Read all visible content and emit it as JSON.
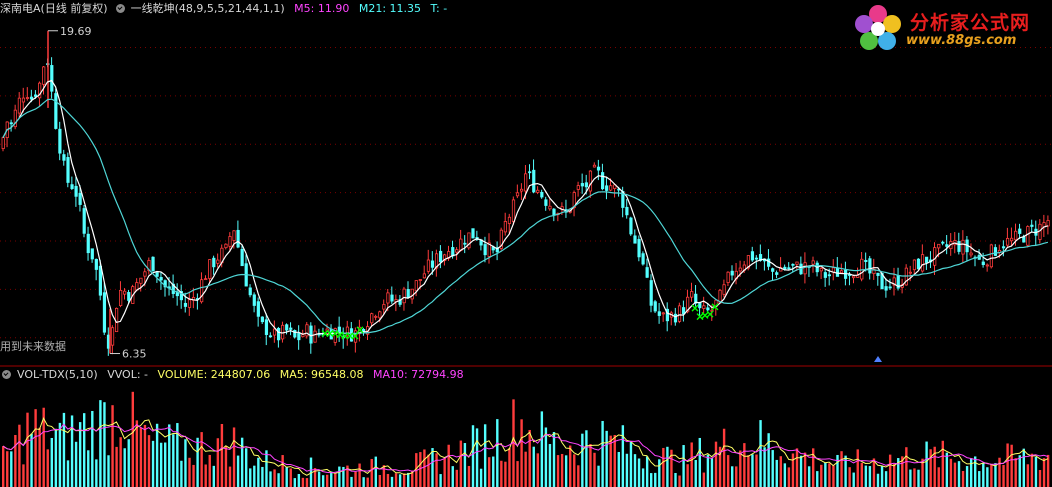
{
  "price_header": {
    "stock_name": "深南电A(日线 前复权)",
    "indicator_name": "一线乾坤(48,9,5,5,21,44,1,1)",
    "m5_label": "M5: 11.90",
    "m21_label": "M21: 11.35",
    "t_label": "T: -"
  },
  "volume_header": {
    "indicator_name": "VOL-TDX(5,10)",
    "vvol_label": "VVOL: -",
    "volume_label": "VOLUME: 244807.06",
    "ma5_label": "MA5: 96548.08",
    "ma10_label": "MA10: 72794.98"
  },
  "future_note": "用到未来数据",
  "logo": {
    "title": "分析家公式网",
    "url": "www.88gs.com"
  },
  "colors": {
    "up": "#ff3c3c",
    "down": "#54ffff",
    "ma_fast": "#ffffff",
    "ma_slow": "#4fd6d6",
    "signal": "#00ff00",
    "vol_ma5": "#ffff66",
    "vol_ma10": "#ff44ff",
    "m5": "#ff44ff",
    "m21": "#54ffff",
    "grid": "#7a0000"
  },
  "chart_data": [
    {
      "type": "candlestick",
      "title": "深南电A(日线 前复权)",
      "ylim": [
        6.0,
        20.3
      ],
      "high_marker": {
        "label": "19.69",
        "value": 19.69
      },
      "low_marker": {
        "label": "6.35",
        "value": 6.35
      },
      "close_keyframes": [
        [
          0,
          14.8
        ],
        [
          5,
          16.0
        ],
        [
          10,
          15.8
        ],
        [
          15,
          16.4
        ],
        [
          20,
          17.0
        ],
        [
          25,
          17.3
        ],
        [
          30,
          16.9
        ],
        [
          40,
          17.6
        ],
        [
          45,
          19.0
        ],
        [
          50,
          17.3
        ],
        [
          55,
          15.8
        ],
        [
          65,
          13.5
        ],
        [
          70,
          13.4
        ],
        [
          75,
          13.0
        ],
        [
          80,
          12.0
        ],
        [
          85,
          10.8
        ],
        [
          90,
          10.6
        ],
        [
          95,
          9.8
        ],
        [
          100,
          8.6
        ],
        [
          105,
          6.9
        ],
        [
          110,
          6.9
        ],
        [
          115,
          8.4
        ],
        [
          120,
          9.0
        ],
        [
          130,
          8.8
        ],
        [
          140,
          9.5
        ],
        [
          150,
          10.2
        ],
        [
          158,
          9.6
        ],
        [
          165,
          9.0
        ],
        [
          175,
          8.8
        ],
        [
          185,
          8.3
        ],
        [
          195,
          8.8
        ],
        [
          205,
          9.7
        ],
        [
          215,
          10.3
        ],
        [
          225,
          10.6
        ],
        [
          232,
          11.7
        ],
        [
          240,
          10.2
        ],
        [
          250,
          8.6
        ],
        [
          258,
          7.5
        ],
        [
          265,
          7.4
        ],
        [
          275,
          7.0
        ],
        [
          285,
          7.3
        ],
        [
          295,
          6.9
        ],
        [
          305,
          7.3
        ],
        [
          312,
          7.0
        ],
        [
          322,
          7.3
        ],
        [
          335,
          7.3
        ],
        [
          345,
          7.2
        ],
        [
          355,
          7.2
        ],
        [
          365,
          7.7
        ],
        [
          375,
          8.2
        ],
        [
          385,
          8.6
        ],
        [
          395,
          8.5
        ],
        [
          405,
          8.9
        ],
        [
          415,
          9.2
        ],
        [
          425,
          9.8
        ],
        [
          435,
          10.2
        ],
        [
          445,
          10.6
        ],
        [
          455,
          10.8
        ],
        [
          465,
          11.2
        ],
        [
          475,
          11.3
        ],
        [
          485,
          10.7
        ],
        [
          495,
          10.4
        ],
        [
          505,
          11.8
        ],
        [
          515,
          12.6
        ],
        [
          525,
          13.8
        ],
        [
          535,
          13.2
        ],
        [
          545,
          12.7
        ],
        [
          555,
          12.3
        ],
        [
          565,
          12.1
        ],
        [
          575,
          13.1
        ],
        [
          585,
          13.3
        ],
        [
          595,
          13.9
        ],
        [
          602,
          13.4
        ],
        [
          610,
          13.3
        ],
        [
          620,
          12.9
        ],
        [
          630,
          11.4
        ],
        [
          640,
          10.3
        ],
        [
          650,
          8.4
        ],
        [
          660,
          7.8
        ],
        [
          670,
          7.9
        ],
        [
          680,
          8.1
        ],
        [
          690,
          8.7
        ],
        [
          700,
          8.0
        ],
        [
          710,
          8.1
        ],
        [
          720,
          8.7
        ],
        [
          730,
          9.7
        ],
        [
          740,
          10.1
        ],
        [
          750,
          10.4
        ],
        [
          760,
          10.2
        ],
        [
          770,
          9.7
        ],
        [
          780,
          9.9
        ],
        [
          790,
          9.9
        ],
        [
          800,
          9.9
        ],
        [
          810,
          10.0
        ],
        [
          820,
          9.6
        ],
        [
          830,
          9.6
        ],
        [
          840,
          9.8
        ],
        [
          850,
          9.8
        ],
        [
          860,
          10.0
        ],
        [
          870,
          9.6
        ],
        [
          880,
          9.2
        ],
        [
          890,
          9.2
        ],
        [
          900,
          9.4
        ],
        [
          910,
          9.8
        ],
        [
          920,
          10.2
        ],
        [
          930,
          10.3
        ],
        [
          940,
          10.6
        ],
        [
          950,
          10.9
        ],
        [
          960,
          10.8
        ],
        [
          970,
          10.5
        ],
        [
          980,
          10.1
        ],
        [
          990,
          10.5
        ],
        [
          1000,
          10.9
        ],
        [
          1010,
          11.0
        ],
        [
          1020,
          11.2
        ],
        [
          1030,
          11.4
        ],
        [
          1040,
          11.6
        ],
        [
          1048,
          11.9
        ]
      ],
      "signal_cross_ranges": [
        [
          325,
          360
        ],
        [
          695,
          718
        ]
      ],
      "series": [
        {
          "name": "M5",
          "value": 11.9
        },
        {
          "name": "M21",
          "value": 11.35
        }
      ]
    },
    {
      "type": "bar",
      "title": "VOL-TDX(5,10)",
      "ylim": [
        0,
        350000
      ],
      "volume_keyframes": [
        [
          0,
          80000
        ],
        [
          30,
          210000
        ],
        [
          60,
          170000
        ],
        [
          90,
          210000
        ],
        [
          120,
          260000
        ],
        [
          150,
          150000
        ],
        [
          200,
          140000
        ],
        [
          230,
          160000
        ],
        [
          260,
          90000
        ],
        [
          300,
          70000
        ],
        [
          330,
          60000
        ],
        [
          380,
          70000
        ],
        [
          420,
          80000
        ],
        [
          450,
          110000
        ],
        [
          480,
          150000
        ],
        [
          520,
          220000
        ],
        [
          560,
          140000
        ],
        [
          600,
          170000
        ],
        [
          640,
          120000
        ],
        [
          680,
          90000
        ],
        [
          720,
          140000
        ],
        [
          760,
          160000
        ],
        [
          800,
          110000
        ],
        [
          840,
          80000
        ],
        [
          880,
          90000
        ],
        [
          920,
          110000
        ],
        [
          960,
          100000
        ],
        [
          1000,
          95000
        ],
        [
          1048,
          110000
        ]
      ],
      "series": [
        {
          "name": "VOLUME",
          "value": 244807.06
        },
        {
          "name": "MA5",
          "value": 96548.08
        },
        {
          "name": "MA10",
          "value": 72794.98
        }
      ]
    }
  ]
}
